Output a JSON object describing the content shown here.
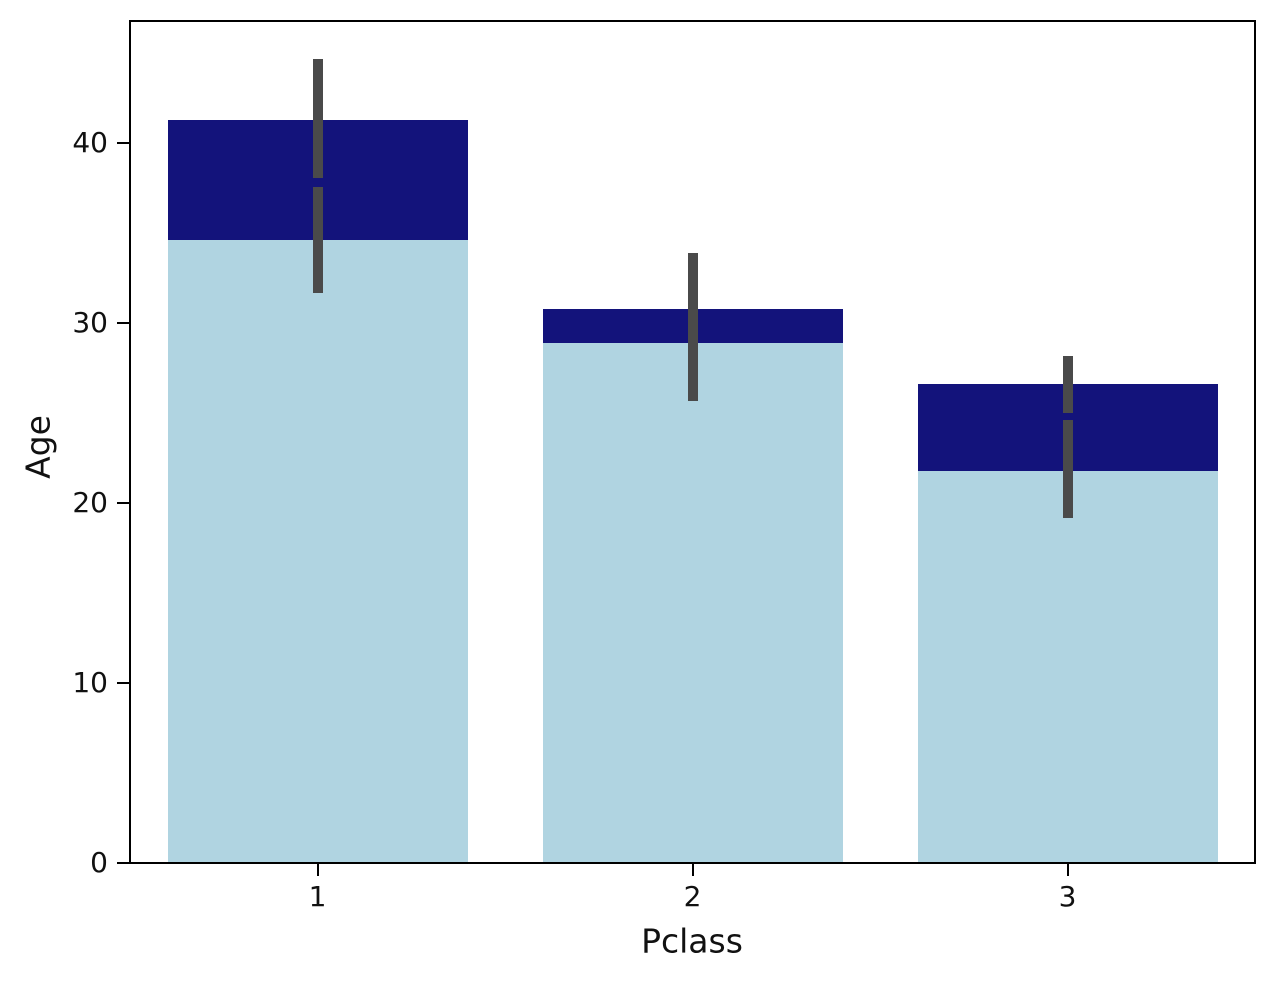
{
  "chart_data": {
    "type": "bar",
    "title": "",
    "xlabel": "Pclass",
    "ylabel": "Age",
    "categories": [
      "1",
      "2",
      "3"
    ],
    "series": [
      {
        "name": "navy-series",
        "color": "#13137b",
        "values": [
          41.3,
          30.8,
          26.6
        ],
        "error_bars": [
          [
            38.1,
            44.7
          ],
          [
            27.9,
            33.9
          ],
          [
            25.0,
            28.2
          ]
        ]
      },
      {
        "name": "lightblue-series",
        "color": "#b0d4e1",
        "values": [
          34.6,
          28.9,
          21.8
        ],
        "error_bars": [
          [
            31.7,
            37.6
          ],
          [
            25.7,
            32.0
          ],
          [
            19.2,
            24.6
          ]
        ]
      }
    ],
    "error_bar_color": "#4a4a4a",
    "yticks": [
      0,
      10,
      20,
      30,
      40
    ],
    "xticks": [
      "1",
      "2",
      "3"
    ],
    "ylim": [
      0,
      46.8
    ],
    "grid": false,
    "legend_visible": false,
    "bars_overlaid": true,
    "background_color": "#ffffff",
    "spine_color": "#000000"
  }
}
